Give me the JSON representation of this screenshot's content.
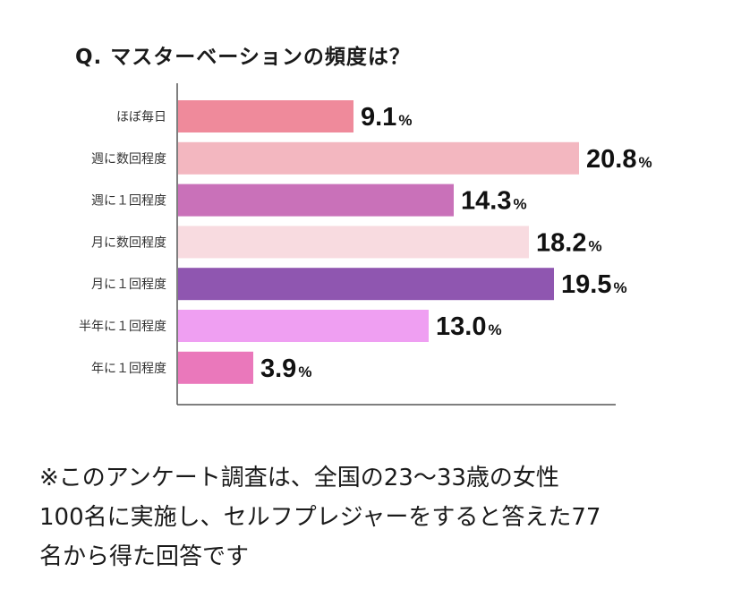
{
  "chart_data": {
    "type": "bar",
    "orientation": "horizontal",
    "title": "Q. マスターベーションの頻度は？",
    "categories": [
      "ほぼ毎日",
      "週に数回程度",
      "週に１回程度",
      "月に数回程度",
      "月に１回程度",
      "半年に１回程度",
      "年に１回程度"
    ],
    "values": [
      9.1,
      20.8,
      14.3,
      18.2,
      19.5,
      13.0,
      3.9
    ],
    "value_labels": [
      "9.1",
      "20.8",
      "14.3",
      "18.2",
      "19.5",
      "13.0",
      "3.9"
    ],
    "unit": "%",
    "colors": [
      "#ef8a9b",
      "#f3b7c0",
      "#c971b9",
      "#f8dbe0",
      "#8f56b0",
      "#ef9ff2",
      "#ea78bb"
    ],
    "xlim": [
      0,
      25
    ],
    "grid": false,
    "xlabel": "",
    "ylabel": ""
  },
  "footnote": {
    "lines": [
      "※このアンケート調査は、全国の23〜33歳の女性",
      "100名に実施し、セルフプレジャーをすると答えた77",
      "名から得た回答です"
    ]
  }
}
